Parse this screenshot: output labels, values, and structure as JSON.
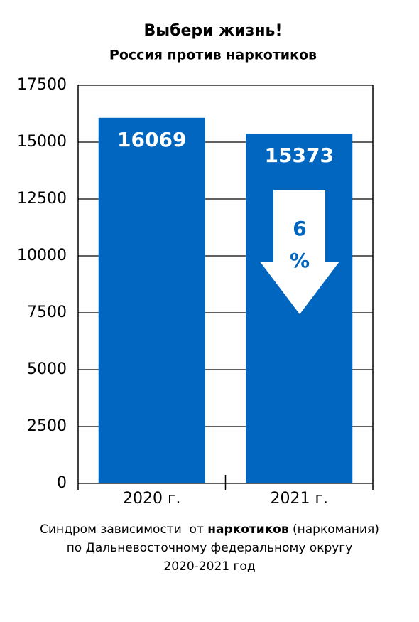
{
  "chart_data": {
    "type": "bar",
    "title": "Выбери жизнь!",
    "subtitle": "Россия против наркотиков",
    "categories": [
      "2020 г.",
      "2021 г."
    ],
    "values": [
      16069,
      15373
    ],
    "color": "#0066bf",
    "ylim": [
      0,
      17500
    ],
    "yticks": [
      0,
      2500,
      5000,
      7500,
      10000,
      12500,
      15000,
      17500
    ],
    "grid": true,
    "annotation": [
      "6",
      "%"
    ],
    "caption": [
      [
        "Синдром зависимости  от ",
        "наркотиков",
        " (наркомания)"
      ],
      [
        "по Дальневосточному федеральному округу"
      ],
      [
        "2020-2021 год"
      ]
    ]
  }
}
